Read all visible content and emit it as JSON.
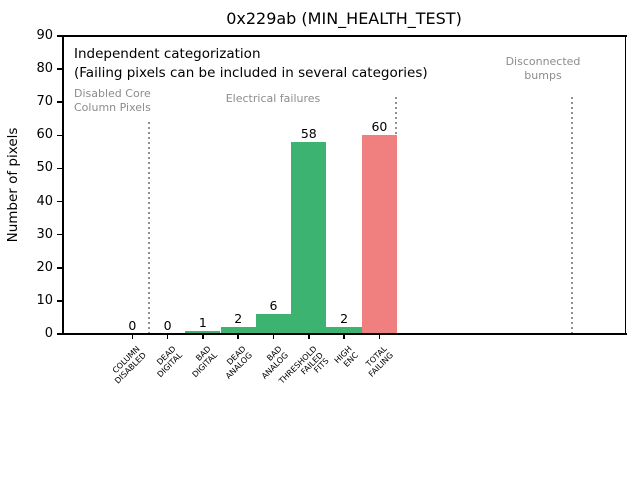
{
  "chart_data": {
    "type": "bar",
    "title": "0x229ab (MIN_HEALTH_TEST)",
    "xlabel": "",
    "ylabel": "Number of pixels",
    "ylim": [
      0,
      90
    ],
    "yticks": [
      0,
      10,
      20,
      30,
      40,
      50,
      60,
      70,
      80,
      90
    ],
    "grid": false,
    "legend": false,
    "categories": [
      "COLUMN\nDISABLED",
      "DEAD\nDIGITAL",
      "BAD\nDIGITAL",
      "DEAD\nANALOG",
      "BAD\nANALOG",
      "THRESHOLD\nFAILED\nFITS",
      "HIGH\nENC",
      "TOTAL\nFAILING"
    ],
    "values": [
      0,
      0,
      1,
      2,
      6,
      58,
      2,
      60
    ],
    "value_labels": [
      "0",
      "0",
      "1",
      "2",
      "6",
      "58",
      "2",
      "60"
    ],
    "bar_colors": [
      "#3cb371",
      "#3cb371",
      "#3cb371",
      "#3cb371",
      "#3cb371",
      "#3cb371",
      "#3cb371",
      "#f08080"
    ],
    "annotations": {
      "heading": "Independent categorization",
      "subheading": "(Failing pixels can be included in several categories)"
    },
    "sections": [
      {
        "label": "Disabled Core\nColumn Pixels"
      },
      {
        "label": "Electrical failures"
      },
      {
        "label": "Disconnected\nbumps"
      }
    ],
    "section_label_color": "#8c8c8c",
    "separator_color": "#909090",
    "colors": {
      "category_bar": "#3cb371",
      "total_bar": "#f08080",
      "axis": "#000000",
      "background": "#ffffff"
    }
  }
}
